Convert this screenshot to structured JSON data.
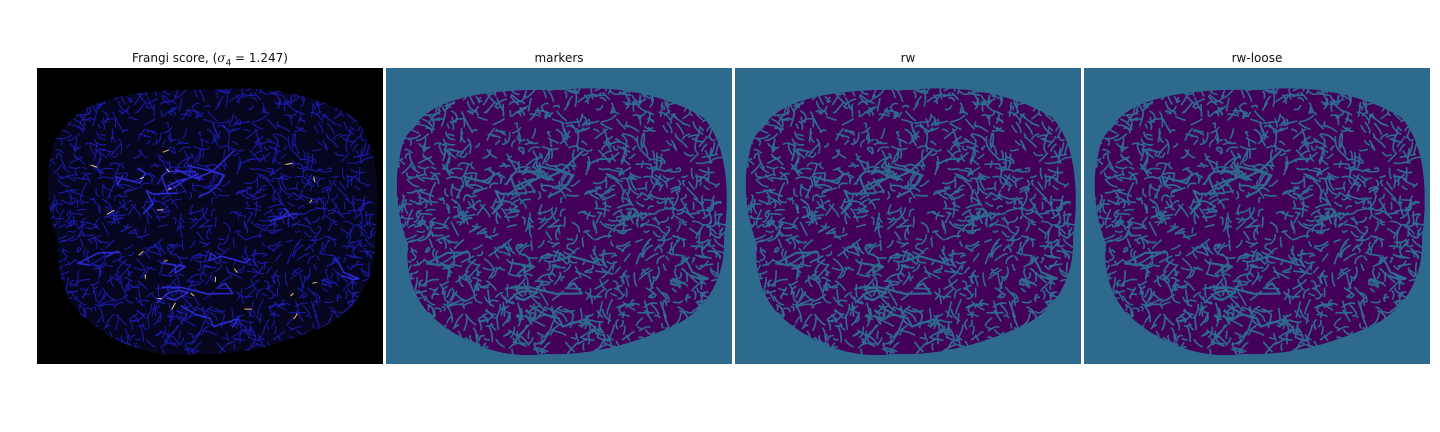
{
  "figure": {
    "panels": [
      {
        "id": "frangi",
        "title_prefix": "Frangi score, (",
        "title_symbol": "σ",
        "title_subscript": "4",
        "title_suffix": " = 1.247)",
        "background": "#000000",
        "vessel_color": "#1a1aa8",
        "highlight_color": "#f5c06a"
      },
      {
        "id": "markers",
        "title": "markers",
        "background": "#2e6a8e",
        "vessel_color": "#44015a"
      },
      {
        "id": "rw",
        "title": "rw",
        "background": "#2e6a8e",
        "vessel_color": "#44015a"
      },
      {
        "id": "rw-loose",
        "title": "rw-loose",
        "background": "#2e6a8e",
        "vessel_color": "#44015a"
      }
    ]
  }
}
